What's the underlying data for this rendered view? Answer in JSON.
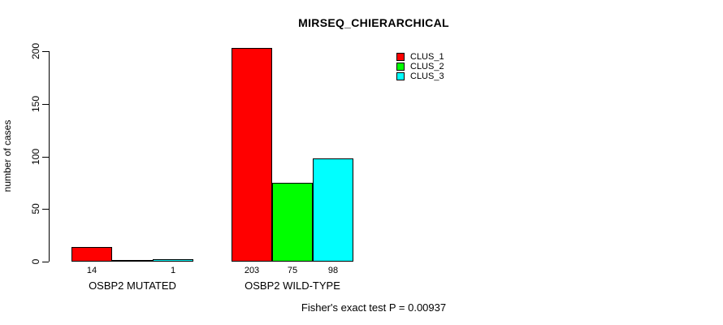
{
  "figure": {
    "title": "MIRSEQ_CHIERARCHICAL",
    "footnote": "Fisher's exact test P = 0.00937"
  },
  "chart_data": {
    "type": "bar",
    "title": "MIRSEQ_CHIERARCHICAL",
    "xlabel": "",
    "ylabel": "number of cases",
    "ylim": [
      0,
      200
    ],
    "yticks": [
      0,
      50,
      100,
      150,
      200
    ],
    "grid": false,
    "legend_position": "top-right",
    "categories": [
      "OSBP2 MUTATED",
      "OSBP2 WILD-TYPE"
    ],
    "series": [
      {
        "name": "CLUS_1",
        "color": "#ff0000",
        "values": [
          14,
          203
        ]
      },
      {
        "name": "CLUS_2",
        "color": "#00ff00",
        "values": [
          0,
          75
        ]
      },
      {
        "name": "CLUS_3",
        "color": "#00ffff",
        "values": [
          1,
          98
        ]
      }
    ],
    "bar_value_labels": [
      [
        "14",
        null,
        "1"
      ],
      [
        "203",
        "75",
        "98"
      ]
    ],
    "annotation": "Fisher's exact test P = 0.00937"
  }
}
